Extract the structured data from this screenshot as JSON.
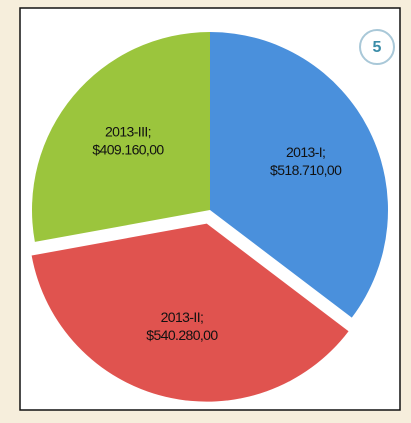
{
  "badge": "5",
  "chart_data": {
    "type": "pie",
    "categories": [
      "2013-I;",
      "2013-II;",
      "2013-III;"
    ],
    "values": [
      518710,
      540280,
      409160
    ],
    "value_labels": [
      "$518.710,00",
      "$540.280,00",
      "$409.160,00"
    ],
    "colors": [
      "#4a90dc",
      "#e0534f",
      "#9bc53d"
    ]
  }
}
